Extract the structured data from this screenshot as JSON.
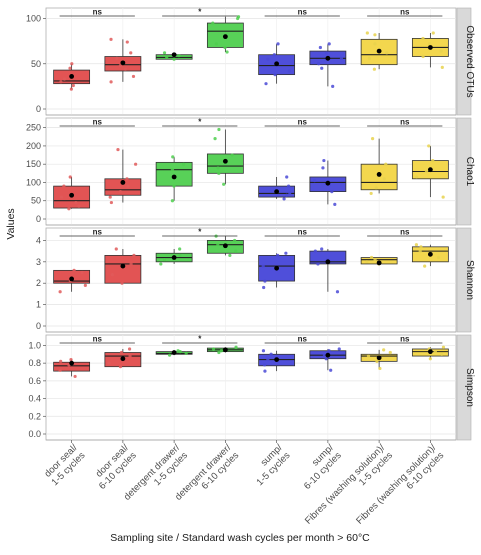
{
  "chart_data": {
    "type": "box",
    "xlabel": "Sampling site / Standard wash cycles per month > 60°C",
    "ylabel": "Values",
    "categories": [
      "door seal/\n1-5 cycles",
      "door seal/\n6-10 cycles",
      "detergent drawer/\n1-5 cycles",
      "detergent drawer/\n6-10 cycles",
      "sump/\n1-5 cycles",
      "sump/\n6-10 cycles",
      "Fibres (washing solution)/\n1-5 cycles",
      "Fibres (washing solution)/\n6-10 cycles"
    ],
    "group_colors": [
      "#e04b4b",
      "#e04b4b",
      "#4fcf4f",
      "#4fcf4f",
      "#4646d8",
      "#4646d8",
      "#f2d545",
      "#f2d545"
    ],
    "point_colors": [
      "#e05a5a",
      "#e05a5a",
      "#4fcf4f",
      "#4fcf4f",
      "#4a4ad6",
      "#4a4ad6",
      "#e8d24e",
      "#e8d24e"
    ],
    "comparisons": [
      {
        "pair": [
          0,
          1
        ],
        "label": "ns"
      },
      {
        "pair": [
          2,
          3
        ],
        "label": "*"
      },
      {
        "pair": [
          4,
          5
        ],
        "label": "ns"
      },
      {
        "pair": [
          6,
          7
        ],
        "label": "ns"
      }
    ],
    "panels": [
      {
        "name": "Observed OTUs",
        "ylim": [
          0,
          105
        ],
        "ticks": [
          0,
          50,
          100
        ],
        "boxes": [
          {
            "q1": 28,
            "median": 31,
            "q3": 43,
            "whisker_low": 22,
            "whisker_high": 50,
            "mean": 36,
            "points": [
              22,
              26,
              30,
              33,
              45,
              50
            ]
          },
          {
            "q1": 42,
            "median": 49,
            "q3": 58,
            "whisker_low": 30,
            "whisker_high": 77,
            "mean": 51,
            "points": [
              30,
              36,
              44,
              48,
              56,
              62,
              74,
              77
            ]
          },
          {
            "q1": 55,
            "median": 57,
            "q3": 60,
            "whisker_low": 55,
            "whisker_high": 62,
            "mean": 60,
            "points": [
              55,
              57,
              59,
              62
            ]
          },
          {
            "q1": 68,
            "median": 86,
            "q3": 95,
            "whisker_low": 63,
            "whisker_high": 102,
            "mean": 80,
            "points": [
              63,
              68,
              72,
              95,
              100,
              102
            ]
          },
          {
            "q1": 38,
            "median": 48,
            "q3": 60,
            "whisker_low": 28,
            "whisker_high": 72,
            "mean": 50,
            "points": [
              28,
              38,
              42,
              55,
              60,
              72
            ]
          },
          {
            "q1": 49,
            "median": 56,
            "q3": 64,
            "whisker_low": 25,
            "whisker_high": 72,
            "mean": 56,
            "points": [
              25,
              45,
              50,
              56,
              62,
              68,
              72
            ]
          },
          {
            "q1": 49,
            "median": 60,
            "q3": 77,
            "whisker_low": 44,
            "whisker_high": 84,
            "mean": 64,
            "points": [
              44,
              56,
              62,
              72,
              82,
              84
            ]
          },
          {
            "q1": 58,
            "median": 68,
            "q3": 78,
            "whisker_low": 46,
            "whisker_high": 84,
            "mean": 68,
            "points": [
              46,
              58,
              64,
              72,
              78,
              84
            ]
          }
        ]
      },
      {
        "name": "Chao1",
        "ylim": [
          0,
          260
        ],
        "ticks": [
          0,
          50,
          100,
          150,
          200,
          250
        ],
        "boxes": [
          {
            "q1": 30,
            "median": 50,
            "q3": 90,
            "whisker_low": 28,
            "whisker_high": 115,
            "mean": 65,
            "points": [
              28,
              35,
              45,
              60,
              90,
              115
            ]
          },
          {
            "q1": 65,
            "median": 80,
            "q3": 110,
            "whisker_low": 45,
            "whisker_high": 190,
            "mean": 100,
            "points": [
              45,
              60,
              75,
              90,
              110,
              150,
              190
            ]
          },
          {
            "q1": 90,
            "median": 135,
            "q3": 155,
            "whisker_low": 50,
            "whisker_high": 170,
            "mean": 115,
            "points": [
              50,
              90,
              135,
              150,
              170
            ]
          },
          {
            "q1": 125,
            "median": 145,
            "q3": 178,
            "whisker_low": 95,
            "whisker_high": 245,
            "mean": 158,
            "points": [
              95,
              125,
              140,
              175,
              220,
              245
            ]
          },
          {
            "q1": 60,
            "median": 70,
            "q3": 90,
            "whisker_low": 55,
            "whisker_high": 115,
            "mean": 75,
            "points": [
              55,
              65,
              72,
              90,
              115
            ]
          },
          {
            "q1": 75,
            "median": 100,
            "q3": 115,
            "whisker_low": 40,
            "whisker_high": 160,
            "mean": 98,
            "points": [
              40,
              75,
              95,
              105,
              140,
              160
            ]
          },
          {
            "q1": 80,
            "median": 100,
            "q3": 150,
            "whisker_low": 70,
            "whisker_high": 220,
            "mean": 122,
            "points": [
              70,
              85,
              110,
              150,
              220
            ]
          },
          {
            "q1": 110,
            "median": 130,
            "q3": 160,
            "whisker_low": 60,
            "whisker_high": 200,
            "mean": 135,
            "points": [
              60,
              115,
              130,
              160,
              200
            ]
          }
        ]
      },
      {
        "name": "Shannon",
        "ylim": [
          0,
          4.3
        ],
        "ticks": [
          0,
          1,
          2,
          3,
          4
        ],
        "boxes": [
          {
            "q1": 2.0,
            "median": 2.1,
            "q3": 2.6,
            "whisker_low": 1.6,
            "whisker_high": 2.6,
            "mean": 2.2,
            "points": [
              1.6,
              1.9,
              2.1,
              2.5,
              2.6
            ]
          },
          {
            "q1": 2.0,
            "median": 2.9,
            "q3": 3.3,
            "whisker_low": 2.0,
            "whisker_high": 3.6,
            "mean": 2.8,
            "points": [
              2.0,
              2.4,
              2.9,
              3.3,
              3.6
            ]
          },
          {
            "q1": 3.0,
            "median": 3.2,
            "q3": 3.4,
            "whisker_low": 2.9,
            "whisker_high": 3.6,
            "mean": 3.2,
            "points": [
              2.9,
              3.1,
              3.3,
              3.6
            ]
          },
          {
            "q1": 3.4,
            "median": 3.8,
            "q3": 4.0,
            "whisker_low": 3.3,
            "whisker_high": 4.2,
            "mean": 3.75,
            "points": [
              3.3,
              3.5,
              3.8,
              4.0,
              4.2
            ]
          },
          {
            "q1": 2.1,
            "median": 2.8,
            "q3": 3.3,
            "whisker_low": 1.8,
            "whisker_high": 3.4,
            "mean": 2.7,
            "points": [
              1.8,
              2.1,
              2.8,
              3.3,
              3.4
            ]
          },
          {
            "q1": 2.9,
            "median": 3.0,
            "q3": 3.5,
            "whisker_low": 1.6,
            "whisker_high": 3.6,
            "mean": 3.0,
            "points": [
              1.6,
              2.9,
              3.1,
              3.5,
              3.6
            ]
          },
          {
            "q1": 2.9,
            "median": 3.1,
            "q3": 3.2,
            "whisker_low": 2.9,
            "whisker_high": 3.2,
            "mean": 2.95,
            "points": [
              2.9,
              3.0,
              3.1,
              3.2
            ]
          },
          {
            "q1": 3.0,
            "median": 3.5,
            "q3": 3.7,
            "whisker_low": 2.8,
            "whisker_high": 3.8,
            "mean": 3.35,
            "points": [
              2.8,
              3.2,
              3.5,
              3.7,
              3.8
            ]
          }
        ]
      },
      {
        "name": "Simpson",
        "ylim": [
          0,
          1.05
        ],
        "ticks": [
          0.0,
          0.2,
          0.4,
          0.6,
          0.8,
          1.0
        ],
        "boxes": [
          {
            "q1": 0.71,
            "median": 0.77,
            "q3": 0.81,
            "whisker_low": 0.65,
            "whisker_high": 0.84,
            "mean": 0.8,
            "points": [
              0.65,
              0.72,
              0.78,
              0.82,
              0.84
            ]
          },
          {
            "q1": 0.76,
            "median": 0.88,
            "q3": 0.92,
            "whisker_low": 0.76,
            "whisker_high": 0.96,
            "mean": 0.85,
            "points": [
              0.76,
              0.8,
              0.88,
              0.92,
              0.96
            ]
          },
          {
            "q1": 0.9,
            "median": 0.91,
            "q3": 0.93,
            "whisker_low": 0.89,
            "whisker_high": 0.94,
            "mean": 0.92,
            "points": [
              0.89,
              0.91,
              0.93,
              0.94
            ]
          },
          {
            "q1": 0.93,
            "median": 0.95,
            "q3": 0.97,
            "whisker_low": 0.92,
            "whisker_high": 0.98,
            "mean": 0.95,
            "points": [
              0.92,
              0.94,
              0.96,
              0.98
            ]
          },
          {
            "q1": 0.77,
            "median": 0.84,
            "q3": 0.9,
            "whisker_low": 0.71,
            "whisker_high": 0.94,
            "mean": 0.84,
            "points": [
              0.71,
              0.78,
              0.84,
              0.9,
              0.94
            ]
          },
          {
            "q1": 0.85,
            "median": 0.89,
            "q3": 0.94,
            "whisker_low": 0.72,
            "whisker_high": 0.96,
            "mean": 0.89,
            "points": [
              0.72,
              0.85,
              0.89,
              0.94,
              0.96
            ]
          },
          {
            "q1": 0.82,
            "median": 0.88,
            "q3": 0.9,
            "whisker_low": 0.74,
            "whisker_high": 0.95,
            "mean": 0.86,
            "points": [
              0.74,
              0.82,
              0.88,
              0.92,
              0.95
            ]
          },
          {
            "q1": 0.88,
            "median": 0.93,
            "q3": 0.96,
            "whisker_low": 0.85,
            "whisker_high": 0.98,
            "mean": 0.93,
            "points": [
              0.85,
              0.9,
              0.93,
              0.96,
              0.98
            ]
          }
        ]
      }
    ]
  }
}
